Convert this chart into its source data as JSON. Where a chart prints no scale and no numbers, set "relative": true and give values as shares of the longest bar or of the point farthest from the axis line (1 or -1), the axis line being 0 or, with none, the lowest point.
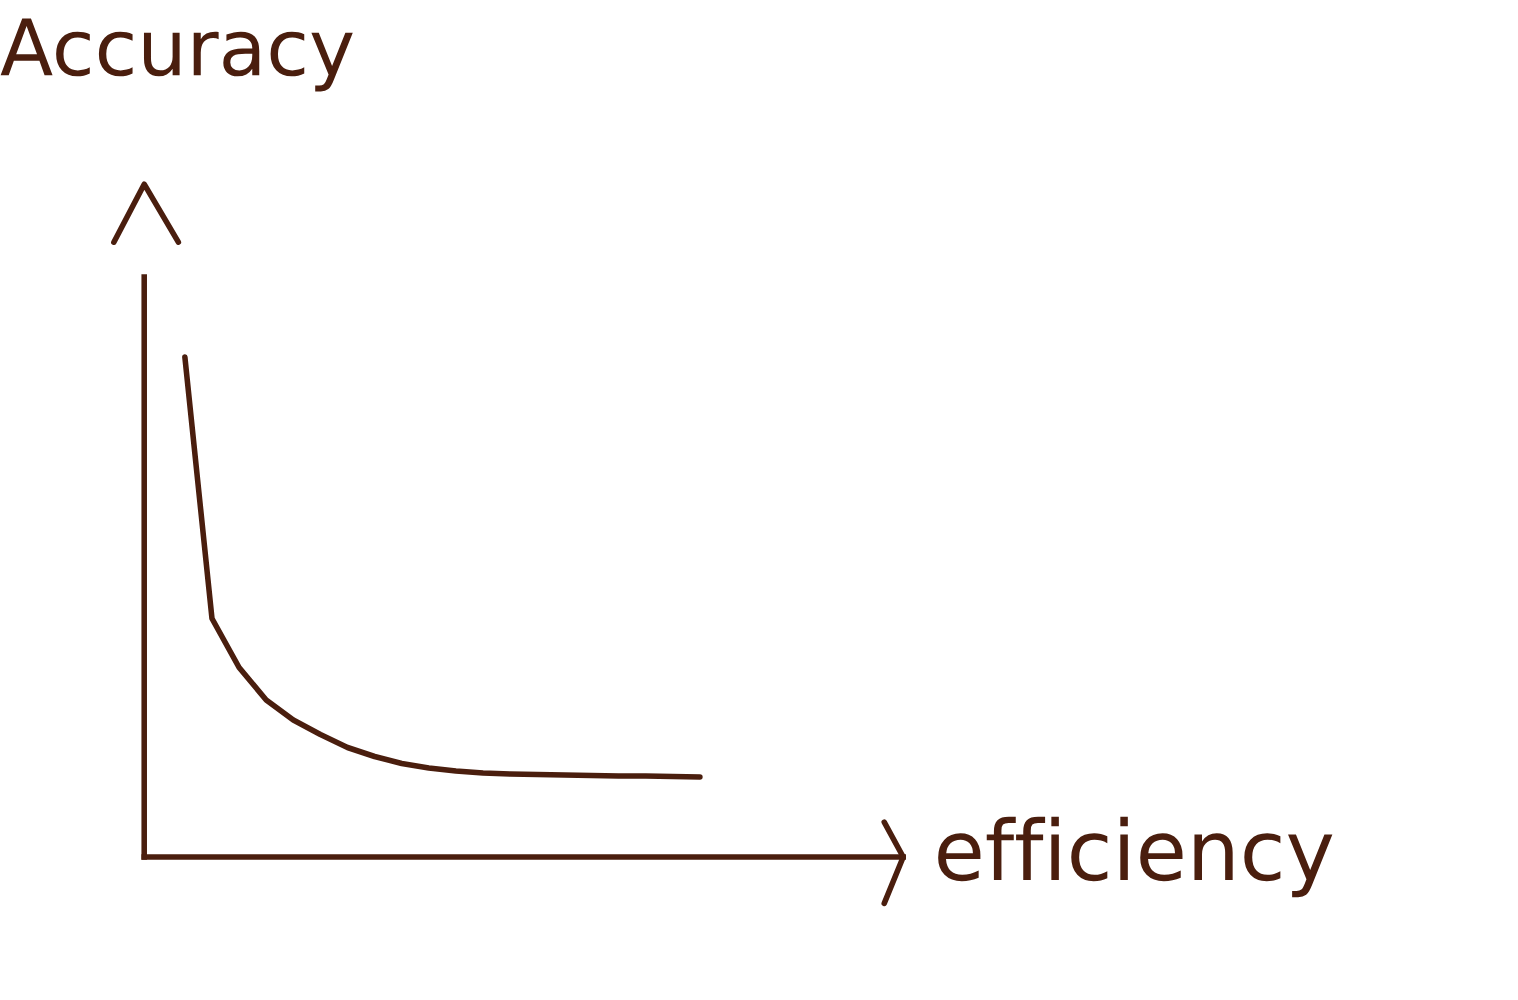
{
  "chart_data": {
    "type": "line",
    "relative": true,
    "xlabel": "efficiency",
    "ylabel": "Accuracy",
    "legend": false,
    "marker": "none",
    "line_style": "solid",
    "categories": [
      null,
      null,
      null,
      null,
      null,
      null,
      null,
      null,
      null,
      null,
      null,
      null,
      null,
      null,
      null,
      null,
      null,
      null,
      null,
      null
    ],
    "series": [
      {
        "color": "#4a1e0e",
        "values": [
          1.0,
          0.477,
          0.379,
          0.314,
          0.274,
          0.245,
          0.219,
          0.201,
          0.187,
          0.178,
          0.172,
          0.168,
          0.166,
          0.165,
          0.164,
          0.163,
          0.162,
          0.162,
          0.161,
          0.16
        ]
      }
    ]
  }
}
